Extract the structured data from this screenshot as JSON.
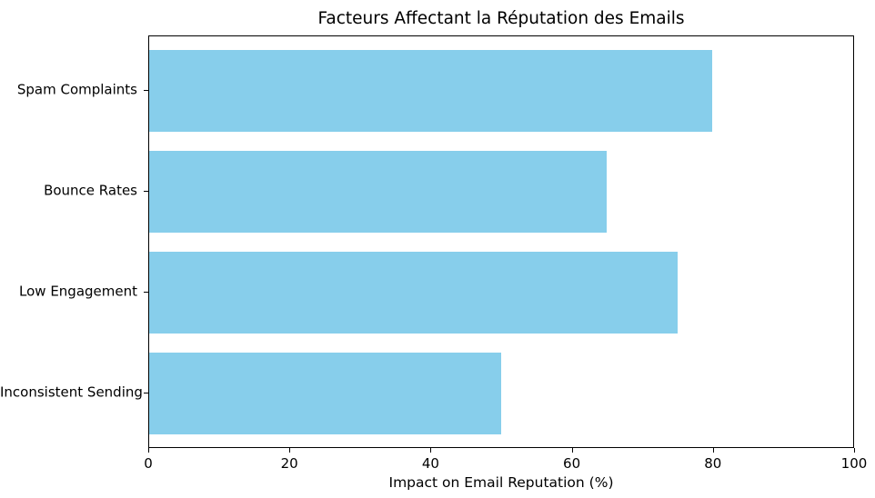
{
  "chart_data": {
    "type": "bar",
    "orientation": "horizontal",
    "title": "Facteurs Affectant la Réputation des Emails",
    "categories": [
      "Spam Complaints",
      "Bounce Rates",
      "Low Engagement",
      "Inconsistent Sending"
    ],
    "values": [
      80,
      65,
      75,
      50
    ],
    "xlabel": "Impact on Email Reputation (%)",
    "ylabel": "",
    "xlim": [
      0,
      100
    ],
    "xticks": [
      0,
      20,
      40,
      60,
      80,
      100
    ],
    "bar_color": "#87CEEB",
    "axis_color": "#000000",
    "text_color": "#000000",
    "background_color": "#FFFFFF",
    "grid": false,
    "legend": "none"
  }
}
